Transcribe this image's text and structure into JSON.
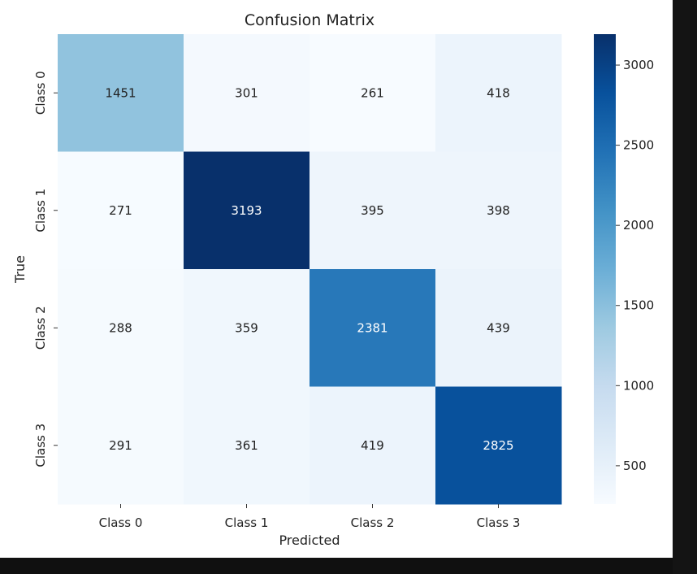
{
  "chart_data": {
    "type": "heatmap",
    "title": "Confusion Matrix",
    "xlabel": "Predicted",
    "ylabel": "True",
    "x_categories": [
      "Class 0",
      "Class 1",
      "Class 2",
      "Class 3"
    ],
    "y_categories": [
      "Class 0",
      "Class 1",
      "Class 2",
      "Class 3"
    ],
    "values": [
      [
        1451,
        301,
        261,
        418
      ],
      [
        271,
        3193,
        395,
        398
      ],
      [
        288,
        359,
        2381,
        439
      ],
      [
        291,
        361,
        419,
        2825
      ]
    ],
    "colorscale": "Blues",
    "colorbar": {
      "ticks": [
        500,
        1000,
        1500,
        2000,
        2500,
        3000
      ],
      "range": [
        261,
        3193
      ]
    }
  }
}
